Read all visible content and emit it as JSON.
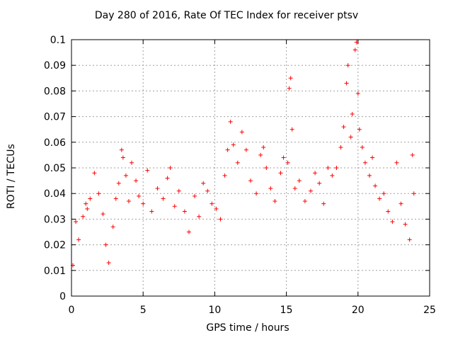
{
  "chart_data": {
    "type": "scatter",
    "title": "Day 280 of 2016, Rate Of TEC Index for receiver ptsv",
    "xlabel": "GPS time / hours",
    "ylabel": "ROTI / TECUs",
    "xlim": [
      0,
      25
    ],
    "ylim": [
      0,
      0.1
    ],
    "xticks": [
      0,
      5,
      10,
      15,
      20,
      25
    ],
    "xtick_labels": [
      "0",
      "5",
      "10",
      "15",
      "20",
      "25"
    ],
    "yticks": [
      0,
      0.01,
      0.02,
      0.03,
      0.04,
      0.05,
      0.06,
      0.07,
      0.08,
      0.09,
      0.1
    ],
    "ytick_labels": [
      "0",
      "0.01",
      "0.02",
      "0.03",
      "0.04",
      "0.05",
      "0.06",
      "0.07",
      "0.08",
      "0.09",
      "0.1"
    ],
    "grid": true,
    "marker": "+",
    "color": "#ff0000",
    "series": [
      {
        "name": "ROTI",
        "points": [
          [
            0.1,
            0.012
          ],
          [
            0.3,
            0.029
          ],
          [
            0.5,
            0.022
          ],
          [
            0.8,
            0.031
          ],
          [
            1.0,
            0.036
          ],
          [
            1.1,
            0.034
          ],
          [
            1.3,
            0.038
          ],
          [
            1.6,
            0.048
          ],
          [
            1.9,
            0.04
          ],
          [
            2.2,
            0.032
          ],
          [
            2.4,
            0.02
          ],
          [
            2.6,
            0.013
          ],
          [
            2.9,
            0.027
          ],
          [
            3.1,
            0.038
          ],
          [
            3.3,
            0.044
          ],
          [
            3.5,
            0.057
          ],
          [
            3.6,
            0.054
          ],
          [
            3.8,
            0.047
          ],
          [
            4.0,
            0.037
          ],
          [
            4.2,
            0.052
          ],
          [
            4.5,
            0.045
          ],
          [
            4.7,
            0.039
          ],
          [
            5.0,
            0.036
          ],
          [
            5.3,
            0.049
          ],
          [
            5.6,
            0.033
          ],
          [
            6.0,
            0.042
          ],
          [
            6.4,
            0.038
          ],
          [
            6.7,
            0.046
          ],
          [
            6.9,
            0.05
          ],
          [
            7.2,
            0.035
          ],
          [
            7.5,
            0.041
          ],
          [
            7.9,
            0.033
          ],
          [
            8.2,
            0.025
          ],
          [
            8.6,
            0.039
          ],
          [
            8.9,
            0.031
          ],
          [
            9.2,
            0.044
          ],
          [
            9.5,
            0.041
          ],
          [
            9.8,
            0.036
          ],
          [
            10.1,
            0.034
          ],
          [
            10.4,
            0.03
          ],
          [
            10.7,
            0.047
          ],
          [
            10.9,
            0.057
          ],
          [
            11.1,
            0.068
          ],
          [
            11.3,
            0.059
          ],
          [
            11.6,
            0.052
          ],
          [
            11.9,
            0.064
          ],
          [
            12.2,
            0.057
          ],
          [
            12.5,
            0.045
          ],
          [
            12.9,
            0.04
          ],
          [
            13.2,
            0.055
          ],
          [
            13.4,
            0.058
          ],
          [
            13.6,
            0.05
          ],
          [
            13.9,
            0.042
          ],
          [
            14.2,
            0.037
          ],
          [
            14.6,
            0.048
          ],
          [
            14.8,
            0.054
          ],
          [
            15.1,
            0.052
          ],
          [
            15.2,
            0.081
          ],
          [
            15.3,
            0.085
          ],
          [
            15.4,
            0.065
          ],
          [
            15.6,
            0.042
          ],
          [
            15.9,
            0.045
          ],
          [
            16.3,
            0.037
          ],
          [
            16.7,
            0.041
          ],
          [
            17.0,
            0.048
          ],
          [
            17.3,
            0.044
          ],
          [
            17.6,
            0.036
          ],
          [
            17.9,
            0.05
          ],
          [
            18.2,
            0.047
          ],
          [
            18.5,
            0.05
          ],
          [
            18.8,
            0.058
          ],
          [
            19.0,
            0.066
          ],
          [
            19.2,
            0.083
          ],
          [
            19.3,
            0.09
          ],
          [
            19.5,
            0.062
          ],
          [
            19.6,
            0.071
          ],
          [
            19.8,
            0.096
          ],
          [
            19.9,
            0.099
          ],
          [
            20.0,
            0.079
          ],
          [
            20.1,
            0.065
          ],
          [
            20.3,
            0.058
          ],
          [
            20.5,
            0.052
          ],
          [
            20.8,
            0.047
          ],
          [
            21.0,
            0.054
          ],
          [
            21.2,
            0.043
          ],
          [
            21.5,
            0.038
          ],
          [
            21.8,
            0.04
          ],
          [
            22.1,
            0.033
          ],
          [
            22.4,
            0.029
          ],
          [
            22.7,
            0.052
          ],
          [
            23.0,
            0.036
          ],
          [
            23.3,
            0.028
          ],
          [
            23.6,
            0.022
          ],
          [
            23.8,
            0.055
          ],
          [
            23.9,
            0.04
          ]
        ]
      }
    ]
  }
}
